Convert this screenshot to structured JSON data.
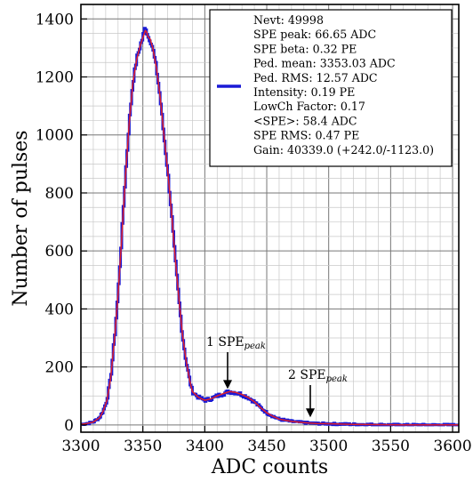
{
  "chart_data": {
    "type": "line",
    "xlabel": "ADC counts",
    "ylabel": "Number of pulses",
    "xlim": [
      3300,
      3605
    ],
    "ylim": [
      -25,
      1450
    ],
    "x_ticks": [
      3300,
      3350,
      3400,
      3450,
      3500,
      3550,
      3600
    ],
    "y_ticks": [
      0,
      200,
      400,
      600,
      800,
      1000,
      1200,
      1400
    ],
    "x_minor_step": 10,
    "y_minor_step": 50,
    "grid": true,
    "legend_position": "top-right",
    "colors": {
      "histogram": "#1a1ad6",
      "fit": "#e0202a",
      "grid": "#9a9a9a"
    },
    "legend_lines": [
      "Nevt: 49998",
      "SPE peak: 66.65 ADC",
      "SPE beta: 0.32 PE",
      "Ped. mean: 3353.03 ADC",
      "Ped. RMS: 12.57 ADC",
      "Intensity: 0.19 PE",
      "LowCh Factor: 0.17",
      "<SPE>: 58.4 ADC",
      "SPE RMS: 0.47 PE",
      "Gain: 40339.0 (+242.0/-1123.0)"
    ],
    "annotations": [
      {
        "text": "1 SPE",
        "sub": "peak",
        "x": 3420,
        "y": 112
      },
      {
        "text": "2 SPE",
        "sub": "peak",
        "x": 3487,
        "y": 14
      }
    ],
    "series": [
      {
        "style": "histogram",
        "x": [
          3300,
          3305,
          3310,
          3315,
          3318,
          3321,
          3324,
          3327,
          3330,
          3333,
          3336,
          3339,
          3342,
          3345,
          3348,
          3350,
          3352,
          3353,
          3354,
          3356,
          3358,
          3361,
          3364,
          3367,
          3370,
          3373,
          3376,
          3379,
          3382,
          3385,
          3388,
          3390,
          3395,
          3400,
          3405,
          3410,
          3415,
          3420,
          3425,
          3430,
          3435,
          3440,
          3445,
          3450,
          3455,
          3460,
          3470,
          3480,
          3490,
          3500,
          3520,
          3540,
          3560,
          3580,
          3605
        ],
        "y": [
          2,
          5,
          10,
          25,
          48,
          85,
          160,
          290,
          450,
          650,
          860,
          1040,
          1180,
          1260,
          1310,
          1335,
          1375,
          1365,
          1340,
          1330,
          1300,
          1230,
          1130,
          1000,
          880,
          740,
          580,
          440,
          310,
          220,
          150,
          115,
          95,
          85,
          90,
          100,
          108,
          115,
          112,
          105,
          95,
          80,
          60,
          42,
          30,
          20,
          12,
          8,
          5,
          4,
          2,
          1,
          0,
          0,
          0
        ],
        "noise": 10
      },
      {
        "style": "line",
        "x": [
          3300,
          3305,
          3310,
          3315,
          3318,
          3321,
          3324,
          3327,
          3330,
          3333,
          3336,
          3339,
          3342,
          3345,
          3348,
          3350,
          3352,
          3353,
          3354,
          3356,
          3358,
          3361,
          3364,
          3367,
          3370,
          3373,
          3376,
          3379,
          3382,
          3385,
          3388,
          3390,
          3395,
          3400,
          3405,
          3410,
          3415,
          3420,
          3425,
          3430,
          3435,
          3440,
          3445,
          3450,
          3455,
          3460,
          3470,
          3480,
          3490,
          3500,
          3520,
          3540,
          3560,
          3580,
          3605
        ],
        "y": [
          2,
          5,
          10,
          25,
          48,
          85,
          160,
          290,
          450,
          650,
          860,
          1040,
          1180,
          1260,
          1310,
          1335,
          1360,
          1355,
          1340,
          1330,
          1300,
          1230,
          1130,
          1000,
          880,
          740,
          580,
          440,
          310,
          220,
          150,
          115,
          95,
          85,
          90,
          100,
          108,
          115,
          112,
          105,
          95,
          80,
          60,
          42,
          30,
          20,
          12,
          8,
          5,
          4,
          2,
          1,
          0,
          0,
          0
        ]
      }
    ]
  }
}
